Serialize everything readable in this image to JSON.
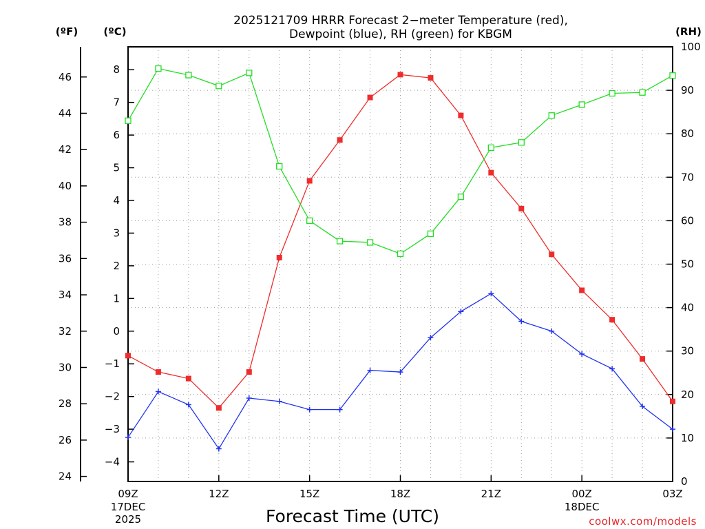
{
  "chart_data": {
    "type": "line",
    "title": "2025121709 HRRR Forecast 2−meter Temperature (red),",
    "subtitle": "Dewpoint (blue), RH (green) for KBGM",
    "xlabel": "Forecast Time (UTC)",
    "credit": "coolwx.com/models",
    "x_hours": [
      9,
      10,
      11,
      12,
      13,
      14,
      15,
      16,
      17,
      18,
      19,
      20,
      21,
      22,
      23,
      24,
      25,
      26,
      27
    ],
    "x_ticks": [
      {
        "hour": 9,
        "label": "09Z",
        "sub1": "17DEC",
        "sub2": "2025"
      },
      {
        "hour": 12,
        "label": "12Z",
        "sub1": "",
        "sub2": ""
      },
      {
        "hour": 15,
        "label": "15Z",
        "sub1": "",
        "sub2": ""
      },
      {
        "hour": 18,
        "label": "18Z",
        "sub1": "",
        "sub2": ""
      },
      {
        "hour": 21,
        "label": "21Z",
        "sub1": "",
        "sub2": ""
      },
      {
        "hour": 24,
        "label": "00Z",
        "sub1": "18DEC",
        "sub2": ""
      },
      {
        "hour": 27,
        "label": "03Z",
        "sub1": "",
        "sub2": ""
      }
    ],
    "xlim": [
      9,
      27
    ],
    "left_axis_f": {
      "unit": "(ºF)",
      "ticks": [
        "24",
        "26",
        "28",
        "30",
        "32",
        "34",
        "36",
        "38",
        "40",
        "42",
        "44",
        "46"
      ]
    },
    "left_axis_c": {
      "unit": "(ºC)",
      "ylim": [
        -4.6,
        8.7
      ],
      "ticks": [
        "−4",
        "−3",
        "−2",
        "−1",
        "0",
        "1",
        "2",
        "3",
        "4",
        "5",
        "6",
        "7",
        "8"
      ]
    },
    "right_axis_rh": {
      "unit": "(RH)",
      "ylim": [
        0,
        100
      ],
      "ticks": [
        "0",
        "10",
        "20",
        "30",
        "40",
        "50",
        "60",
        "70",
        "80",
        "90",
        "100"
      ]
    },
    "series": [
      {
        "name": "2-meter Temperature",
        "unit": "C",
        "color": "#ee2c2c",
        "marker": "filled-square",
        "values": [
          -0.75,
          -1.25,
          -1.45,
          -2.35,
          -1.25,
          2.25,
          4.6,
          5.85,
          7.15,
          7.85,
          7.75,
          6.6,
          4.85,
          3.75,
          2.35,
          1.25,
          0.35,
          -0.85,
          -2.15
        ]
      },
      {
        "name": "Dewpoint",
        "unit": "C",
        "color": "#2233ee",
        "marker": "plus",
        "values": [
          -3.25,
          -1.85,
          -2.25,
          -3.6,
          -2.05,
          -2.15,
          -2.4,
          -2.4,
          -1.2,
          -1.25,
          -0.2,
          0.6,
          1.15,
          0.3,
          0.0,
          -0.7,
          -1.15,
          -2.3,
          -3.0
        ]
      },
      {
        "name": "RH",
        "unit": "%",
        "color": "#22dd22",
        "marker": "open-square",
        "axis": "right",
        "values": [
          83.0,
          95.0,
          93.5,
          91.0,
          94.0,
          72.5,
          60.0,
          55.3,
          55.0,
          52.4,
          57.0,
          65.5,
          76.8,
          78.0,
          84.2,
          86.7,
          89.3,
          89.5,
          93.4
        ]
      }
    ],
    "grid": true
  }
}
